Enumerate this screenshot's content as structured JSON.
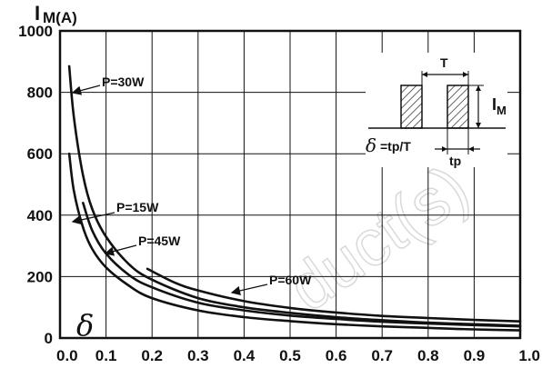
{
  "chart_data": {
    "type": "line",
    "xlim": [
      0,
      1
    ],
    "ylim": [
      0,
      1000
    ],
    "x_ticks": [
      "0.0",
      "0.1",
      "0.2",
      "0.3",
      "0.4",
      "0.5",
      "0.6",
      "0.7",
      "0.8",
      "0.9",
      "1.0"
    ],
    "y_ticks": [
      "0",
      "200",
      "400",
      "600",
      "800",
      "1000"
    ],
    "ylabel_main": "I",
    "ylabel_sub": "M(A)",
    "xlabel": "δ",
    "grid": true,
    "series": [
      {
        "name": "P=15W",
        "x": [
          0.02,
          0.03,
          0.05,
          0.07,
          0.1,
          0.15,
          0.2,
          0.3,
          0.4,
          0.5,
          0.6,
          0.7,
          0.8,
          0.9,
          1.0
        ],
        "y": [
          600,
          480,
          360,
          290,
          230,
          170,
          130,
          90,
          68,
          55,
          45,
          38,
          33,
          28,
          25
        ]
      },
      {
        "name": "P=30W",
        "x": [
          0.02,
          0.03,
          0.05,
          0.07,
          0.1,
          0.15,
          0.2,
          0.3,
          0.4,
          0.5,
          0.6,
          0.7,
          0.8,
          0.9,
          1.0
        ],
        "y": [
          885,
          720,
          530,
          420,
          330,
          240,
          190,
          130,
          100,
          82,
          68,
          58,
          50,
          45,
          40
        ]
      },
      {
        "name": "P=45W",
        "x": [
          0.05,
          0.07,
          0.1,
          0.15,
          0.2,
          0.3,
          0.4,
          0.5,
          0.6,
          0.7,
          0.8,
          0.9,
          1.0
        ],
        "y": [
          440,
          350,
          275,
          205,
          165,
          115,
          90,
          73,
          62,
          53,
          47,
          42,
          38
        ]
      },
      {
        "name": "P=60W",
        "x": [
          0.19,
          0.25,
          0.3,
          0.4,
          0.5,
          0.6,
          0.7,
          0.8,
          0.9,
          1.0
        ],
        "y": [
          225,
          180,
          155,
          120,
          98,
          83,
          72,
          65,
          59,
          54
        ]
      }
    ],
    "annotations": [
      "P=30W",
      "P=15W",
      "P=45W",
      "P=60W"
    ]
  },
  "inset": {
    "period_label": "T",
    "current_label_main": "I",
    "current_label_sub": "M",
    "duty_symbol": "δ",
    "duty_formula": "=tp/T",
    "pulse_label": "tp"
  },
  "watermark": "duct(s)"
}
